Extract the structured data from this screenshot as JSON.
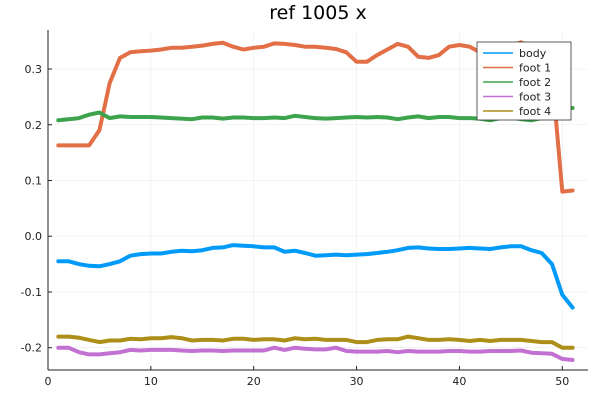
{
  "chart_data": {
    "type": "line",
    "title": "ref 1005 x",
    "xlabel": "",
    "ylabel": "",
    "xlim": [
      0,
      52.5
    ],
    "ylim": [
      -0.24,
      0.37
    ],
    "xticks": [
      0,
      10,
      20,
      30,
      40,
      50
    ],
    "yticks": [
      -0.2,
      -0.1,
      0.0,
      0.1,
      0.2,
      0.3
    ],
    "ytick_labels": [
      "-0.2",
      "-0.1",
      "0.0",
      "0.1",
      "0.2",
      "0.3"
    ],
    "grid": true,
    "legend_position": "top-right",
    "x": [
      1,
      2,
      3,
      4,
      5,
      6,
      7,
      8,
      9,
      10,
      11,
      12,
      13,
      14,
      15,
      16,
      17,
      18,
      19,
      20,
      21,
      22,
      23,
      24,
      25,
      26,
      27,
      28,
      29,
      30,
      31,
      32,
      33,
      34,
      35,
      36,
      37,
      38,
      39,
      40,
      41,
      42,
      43,
      44,
      45,
      46,
      47,
      48,
      49,
      50,
      51
    ],
    "series": [
      {
        "name": "body",
        "color": "#009af9",
        "values": [
          -0.045,
          -0.045,
          -0.05,
          -0.053,
          -0.054,
          -0.05,
          -0.045,
          -0.035,
          -0.032,
          -0.031,
          -0.031,
          -0.028,
          -0.026,
          -0.027,
          -0.025,
          -0.021,
          -0.02,
          -0.016,
          -0.017,
          -0.018,
          -0.02,
          -0.02,
          -0.028,
          -0.026,
          -0.03,
          -0.035,
          -0.034,
          -0.033,
          -0.034,
          -0.033,
          -0.032,
          -0.03,
          -0.028,
          -0.025,
          -0.021,
          -0.02,
          -0.022,
          -0.023,
          -0.023,
          -0.022,
          -0.021,
          -0.022,
          -0.023,
          -0.02,
          -0.018,
          -0.018,
          -0.025,
          -0.03,
          -0.05,
          -0.105,
          -0.128
        ]
      },
      {
        "name": "foot 1",
        "color": "#e26f46",
        "values": [
          0.163,
          0.163,
          0.163,
          0.163,
          0.19,
          0.275,
          0.32,
          0.33,
          0.332,
          0.333,
          0.335,
          0.338,
          0.338,
          0.34,
          0.342,
          0.345,
          0.347,
          0.34,
          0.335,
          0.338,
          0.34,
          0.346,
          0.345,
          0.343,
          0.34,
          0.34,
          0.338,
          0.336,
          0.33,
          0.313,
          0.313,
          0.325,
          0.335,
          0.345,
          0.34,
          0.322,
          0.32,
          0.325,
          0.34,
          0.343,
          0.34,
          0.33,
          0.335,
          0.335,
          0.342,
          0.348,
          0.338,
          0.32,
          0.29,
          0.08,
          0.082
        ]
      },
      {
        "name": "foot 2",
        "color": "#3da44d",
        "values": [
          0.208,
          0.21,
          0.212,
          0.218,
          0.222,
          0.212,
          0.215,
          0.214,
          0.214,
          0.214,
          0.213,
          0.212,
          0.211,
          0.21,
          0.213,
          0.213,
          0.211,
          0.213,
          0.213,
          0.212,
          0.212,
          0.213,
          0.212,
          0.216,
          0.214,
          0.212,
          0.211,
          0.212,
          0.213,
          0.214,
          0.213,
          0.214,
          0.213,
          0.21,
          0.213,
          0.215,
          0.212,
          0.214,
          0.214,
          0.212,
          0.212,
          0.211,
          0.208,
          0.212,
          0.213,
          0.21,
          0.208,
          0.212,
          0.22,
          0.23,
          0.23
        ]
      },
      {
        "name": "foot 3",
        "color": "#c271d2",
        "values": [
          -0.2,
          -0.2,
          -0.208,
          -0.212,
          -0.212,
          -0.21,
          -0.208,
          -0.204,
          -0.205,
          -0.204,
          -0.204,
          -0.204,
          -0.205,
          -0.206,
          -0.205,
          -0.205,
          -0.206,
          -0.205,
          -0.205,
          -0.205,
          -0.205,
          -0.2,
          -0.204,
          -0.2,
          -0.202,
          -0.203,
          -0.203,
          -0.2,
          -0.206,
          -0.207,
          -0.207,
          -0.207,
          -0.206,
          -0.208,
          -0.206,
          -0.207,
          -0.207,
          -0.207,
          -0.206,
          -0.206,
          -0.207,
          -0.207,
          -0.206,
          -0.206,
          -0.206,
          -0.205,
          -0.209,
          -0.21,
          -0.211,
          -0.22,
          -0.222
        ]
      },
      {
        "name": "foot 4",
        "color": "#ac8e18",
        "values": [
          -0.18,
          -0.18,
          -0.182,
          -0.186,
          -0.19,
          -0.187,
          -0.187,
          -0.184,
          -0.185,
          -0.183,
          -0.183,
          -0.181,
          -0.183,
          -0.187,
          -0.186,
          -0.186,
          -0.187,
          -0.184,
          -0.184,
          -0.186,
          -0.185,
          -0.185,
          -0.187,
          -0.183,
          -0.185,
          -0.184,
          -0.186,
          -0.186,
          -0.186,
          -0.19,
          -0.19,
          -0.186,
          -0.185,
          -0.185,
          -0.18,
          -0.183,
          -0.186,
          -0.186,
          -0.185,
          -0.186,
          -0.188,
          -0.186,
          -0.188,
          -0.186,
          -0.186,
          -0.186,
          -0.188,
          -0.19,
          -0.19,
          -0.2,
          -0.2
        ]
      }
    ]
  }
}
